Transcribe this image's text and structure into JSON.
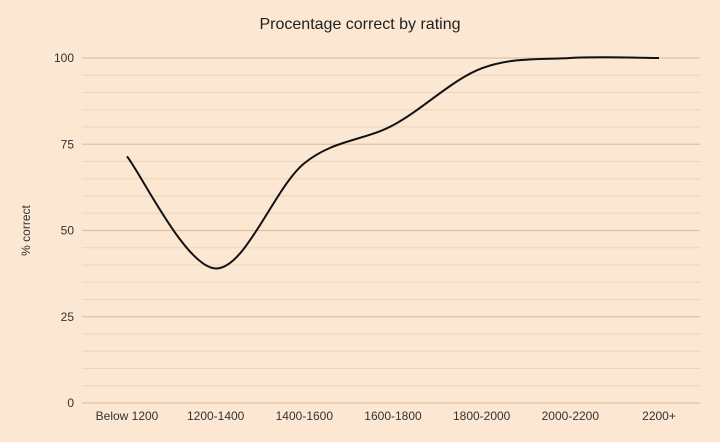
{
  "chart_data": {
    "type": "line",
    "title": "Procentage correct by rating",
    "xlabel": "",
    "ylabel": "% correct",
    "categories": [
      "Below 1200",
      "1200-1400",
      "1400-1600",
      "1600-1800",
      "1800-2000",
      "2000-2200",
      "2200+"
    ],
    "series": [
      {
        "name": "% correct",
        "values": [
          71.5,
          39,
          69.5,
          80.5,
          97,
          100,
          100
        ]
      }
    ],
    "ylim": [
      0,
      100
    ],
    "yticks": [
      "0",
      "25",
      "50",
      "75",
      "100"
    ],
    "minor_grid_step": 5,
    "grid": true,
    "line_color": "#111111",
    "major_grid_color": "#dcc4a4",
    "minor_grid_color": "#efd6ba"
  }
}
